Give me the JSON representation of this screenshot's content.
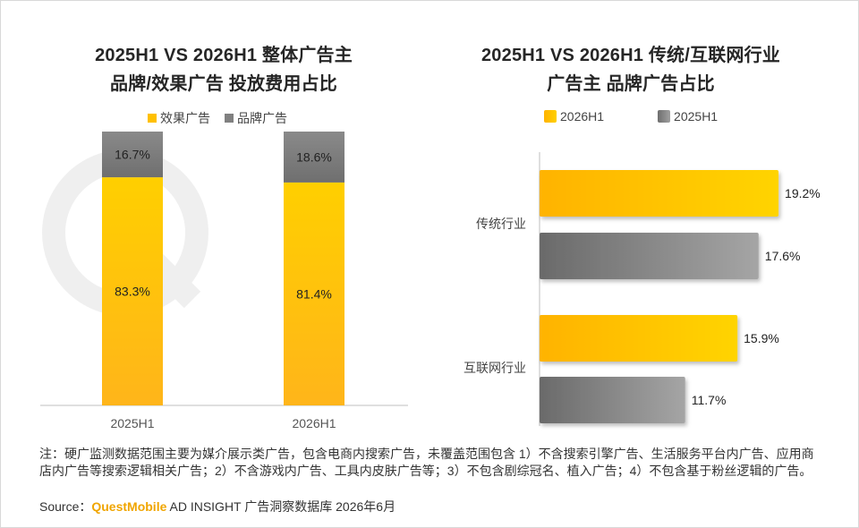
{
  "left_chart": {
    "title_line1": "2025H1 VS 2026H1 整体广告主",
    "title_line2": "品牌/效果广告 投放费用占比"
  },
  "right_chart": {
    "title_line1": "2025H1 VS 2026H1  传统/互联网行业",
    "title_line2": "广告主 品牌广告占比"
  },
  "colors": {
    "effect": "#ffc000",
    "brand": "#808080",
    "h2026": "#ffc000",
    "h2025": "#808080"
  },
  "chart_data": [
    {
      "type": "bar",
      "stacked": true,
      "percent": true,
      "categories": [
        "2025H1",
        "2026H1"
      ],
      "series": [
        {
          "name": "效果广告",
          "values": [
            83.3,
            81.4
          ],
          "labels": [
            "83.3%",
            "81.4%"
          ]
        },
        {
          "name": "品牌广告",
          "values": [
            16.7,
            18.6
          ],
          "labels": [
            "16.7%",
            "18.6%"
          ]
        }
      ],
      "ylim": [
        0,
        100
      ],
      "legend": "top"
    },
    {
      "type": "bar",
      "orientation": "horizontal",
      "categories": [
        "传统行业",
        "互联网行业"
      ],
      "series": [
        {
          "name": "2026H1",
          "values": [
            19.2,
            15.9
          ],
          "labels": [
            "19.2%",
            "15.9%"
          ]
        },
        {
          "name": "2025H1",
          "values": [
            17.6,
            11.7
          ],
          "labels": [
            "17.6%",
            "11.7%"
          ]
        }
      ],
      "xlim": [
        0,
        22
      ],
      "legend": "top"
    }
  ],
  "footer": {
    "note": "注：硬广监测数据范围主要为媒介展示类广告，包含电商内搜索广告，未覆盖范围包含 1）不含搜索引擎广告、生活服务平台内广告、应用商店内广告等搜索逻辑相关广告；2）不含游戏内广告、工具内皮肤广告等；3）不包含剧综冠名、植入广告；4）不包含基于粉丝逻辑的广告。",
    "source_prefix": "Source：",
    "source_brand": "QuestMobile",
    "source_rest": " AD INSIGHT 广告洞察数据库 2026年6月"
  }
}
